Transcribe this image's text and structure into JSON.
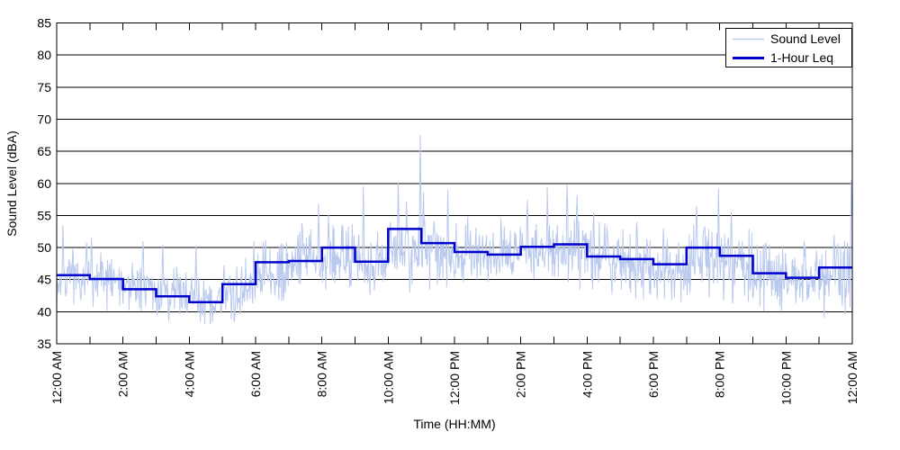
{
  "chart_data": {
    "type": "line",
    "title": "",
    "xlabel": "Time (HH:MM)",
    "ylabel": "Sound Level (dBA)",
    "xlim_hours": [
      0,
      24
    ],
    "ylim": [
      35,
      85
    ],
    "ytick_step": 5,
    "ytick_labels": [
      "35",
      "40",
      "45",
      "50",
      "55",
      "60",
      "65",
      "70",
      "75",
      "80",
      "85"
    ],
    "xtick_major": {
      "hours": [
        0,
        2,
        4,
        6,
        8,
        10,
        12,
        14,
        16,
        18,
        20,
        22,
        24
      ],
      "labels": [
        "12:00 AM",
        "2:00 AM",
        "4:00 AM",
        "6:00 AM",
        "8:00 AM",
        "10:00 AM",
        "12:00 PM",
        "2:00 PM",
        "4:00 PM",
        "6:00 PM",
        "8:00 PM",
        "10:00 PM",
        "12:00 AM"
      ]
    },
    "xtick_minor_hours": [
      1,
      3,
      5,
      7,
      9,
      11,
      13,
      15,
      17,
      19,
      21,
      23
    ],
    "grid": "horizontal-solid-black",
    "legend_position": "top-right",
    "axis_color": "#000000",
    "background_color": "#ffffff",
    "series": [
      {
        "name": "Sound Level",
        "color": "#b9c9ee",
        "style": "noisy-minute-data",
        "sample_interval_minutes": 1,
        "hourly_band_lo": [
          41.5,
          41.0,
          40.5,
          39.5,
          39.0,
          39.0,
          42.0,
          43.5,
          44.5,
          43.5,
          44.0,
          44.5,
          44.5,
          44.0,
          44.5,
          44.5,
          43.5,
          43.0,
          42.5,
          43.0,
          42.0,
          41.0,
          40.5,
          40.0
        ],
        "hourly_band_hi": [
          48.5,
          48.0,
          47.0,
          46.0,
          44.5,
          47.0,
          50.0,
          51.5,
          52.5,
          51.0,
          54.0,
          53.0,
          52.5,
          52.0,
          53.0,
          53.5,
          52.5,
          52.0,
          51.0,
          53.0,
          52.5,
          50.0,
          49.0,
          50.5
        ],
        "spikes": [
          {
            "t": 0.18,
            "v": 53.5
          },
          {
            "t": 0.9,
            "v": 50.8
          },
          {
            "t": 1.05,
            "v": 51.6
          },
          {
            "t": 2.6,
            "v": 51.0
          },
          {
            "t": 3.2,
            "v": 50.5
          },
          {
            "t": 4.2,
            "v": 50.3
          },
          {
            "t": 5.95,
            "v": 51.0
          },
          {
            "t": 6.3,
            "v": 51.2
          },
          {
            "t": 7.4,
            "v": 53.8
          },
          {
            "t": 7.9,
            "v": 56.8
          },
          {
            "t": 8.2,
            "v": 55.2
          },
          {
            "t": 8.6,
            "v": 53.4
          },
          {
            "t": 9.25,
            "v": 59.5
          },
          {
            "t": 10.3,
            "v": 60.2
          },
          {
            "t": 10.55,
            "v": 57.2
          },
          {
            "t": 10.97,
            "v": 67.5
          },
          {
            "t": 11.06,
            "v": 58.6
          },
          {
            "t": 11.8,
            "v": 59.0
          },
          {
            "t": 12.4,
            "v": 54.8
          },
          {
            "t": 13.4,
            "v": 54.5
          },
          {
            "t": 14.2,
            "v": 57.4
          },
          {
            "t": 14.8,
            "v": 59.4
          },
          {
            "t": 15.4,
            "v": 59.8
          },
          {
            "t": 15.7,
            "v": 58.2
          },
          {
            "t": 16.2,
            "v": 55.4
          },
          {
            "t": 16.6,
            "v": 53.2
          },
          {
            "t": 17.5,
            "v": 54.0
          },
          {
            "t": 18.3,
            "v": 53.0
          },
          {
            "t": 19.3,
            "v": 56.5
          },
          {
            "t": 19.97,
            "v": 59.2
          },
          {
            "t": 20.35,
            "v": 55.5
          },
          {
            "t": 21.4,
            "v": 50.8
          },
          {
            "t": 22.55,
            "v": 51.1
          },
          {
            "t": 23.45,
            "v": 52.0
          },
          {
            "t": 23.97,
            "v": 60.5
          }
        ],
        "seed": 7
      },
      {
        "name": "1-Hour Leq",
        "color": "#0000cd",
        "style": "hourly-step",
        "hours": [
          0,
          1,
          2,
          3,
          4,
          5,
          6,
          7,
          8,
          9,
          10,
          11,
          12,
          13,
          14,
          15,
          16,
          17,
          18,
          19,
          20,
          21,
          22,
          23
        ],
        "values": [
          45.7,
          45.1,
          43.5,
          42.4,
          41.5,
          44.3,
          47.7,
          47.9,
          50.0,
          47.8,
          52.9,
          50.7,
          49.3,
          48.9,
          50.1,
          50.5,
          48.6,
          48.2,
          47.4,
          50.0,
          48.7,
          46.0,
          45.3,
          46.9
        ]
      }
    ]
  }
}
